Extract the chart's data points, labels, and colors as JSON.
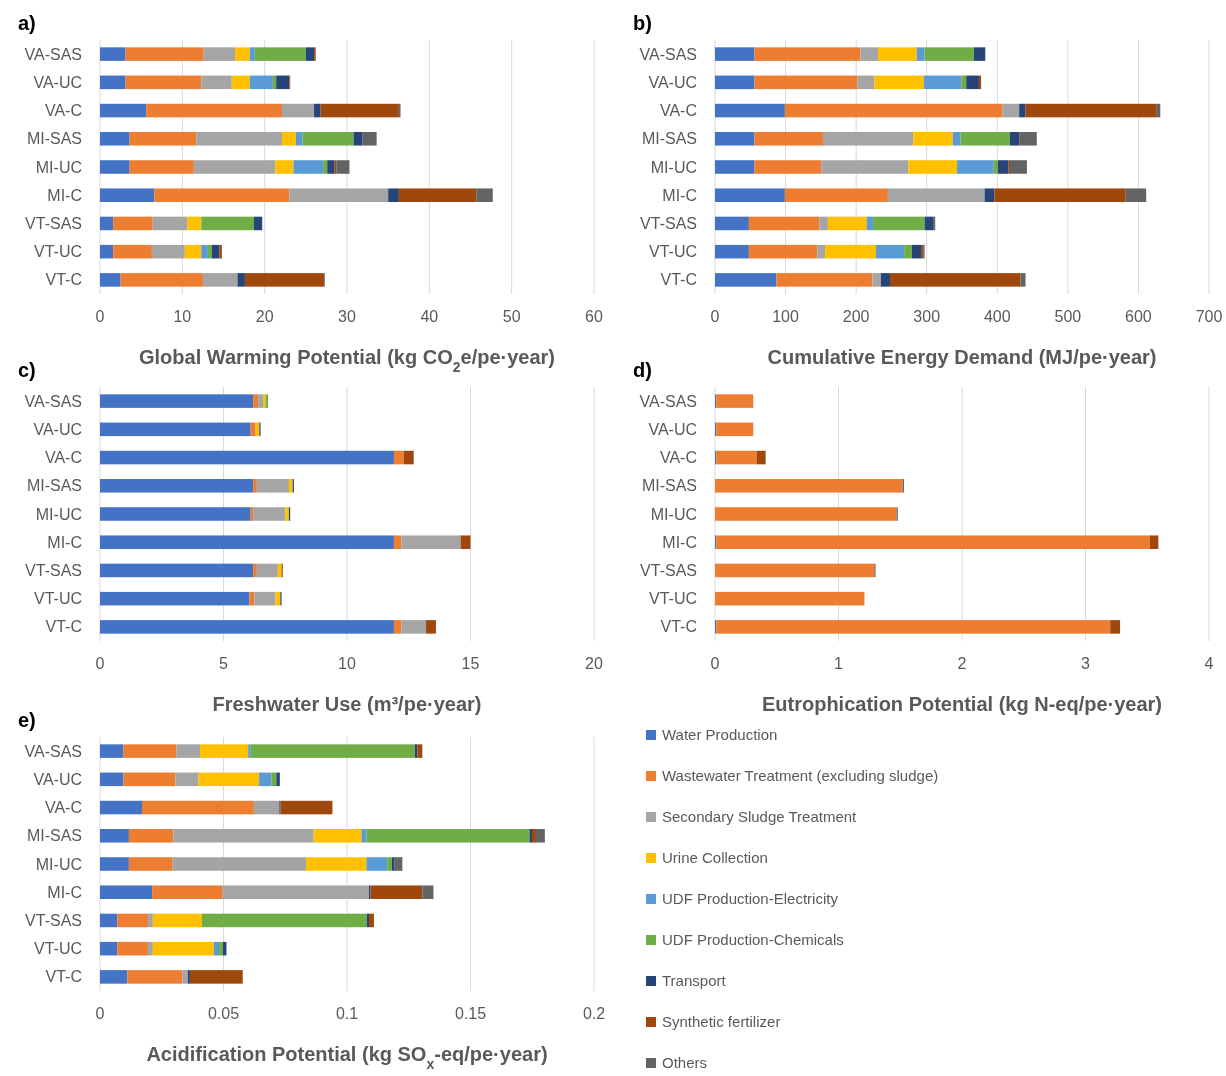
{
  "chart_data": [
    {
      "type": "bar",
      "orientation": "horizontal",
      "stacked": true,
      "title": "a)",
      "xlabel": "Global Warming Potential (kg CO$_{2}$e/pe·year)",
      "categories": [
        "VA-SAS",
        "VA-UC",
        "VA-C",
        "MI-SAS",
        "MI-UC",
        "MI-C",
        "VT-SAS",
        "VT-UC",
        "VT-C"
      ],
      "xlim": [
        0,
        60
      ],
      "xticks": [
        0,
        10,
        20,
        30,
        40,
        50,
        60
      ],
      "grid": "x",
      "legend": false,
      "series": [
        {
          "color": "#4472c4",
          "values": [
            3.1,
            3.1,
            5.6,
            3.6,
            3.6,
            6.6,
            1.6,
            1.6,
            2.5
          ]
        },
        {
          "color": "#ed7d31",
          "values": [
            9.5,
            9.2,
            16.5,
            8.1,
            7.8,
            16.4,
            4.8,
            4.7,
            10.0
          ]
        },
        {
          "color": "#a5a5a5",
          "values": [
            3.8,
            3.7,
            3.9,
            10.4,
            9.9,
            12.0,
            4.2,
            4.0,
            4.2
          ]
        },
        {
          "color": "#ffc000",
          "values": [
            1.8,
            2.2,
            0,
            1.7,
            2.2,
            0,
            1.7,
            2.0,
            0
          ]
        },
        {
          "color": "#5b9bd5",
          "values": [
            0.6,
            2.8,
            0,
            0.8,
            3.6,
            0,
            0,
            0.8,
            0
          ]
        },
        {
          "color": "#70ad47",
          "values": [
            6.2,
            0.4,
            0,
            6.2,
            0.5,
            0,
            6.4,
            0.5,
            0
          ]
        },
        {
          "color": "#264478",
          "values": [
            1.0,
            1.6,
            0.8,
            1.1,
            0.9,
            1.3,
            1.0,
            0.9,
            0.9
          ]
        },
        {
          "color": "#9e480e",
          "values": [
            0.2,
            0.1,
            9.5,
            0,
            0.2,
            9.4,
            0,
            0.3,
            9.6
          ]
        },
        {
          "color": "#636363",
          "values": [
            0,
            0,
            0.2,
            1.7,
            1.6,
            2.0,
            0,
            0,
            0.1
          ]
        }
      ]
    },
    {
      "type": "bar",
      "orientation": "horizontal",
      "stacked": true,
      "title": "b)",
      "xlabel": "Cumulative Energy Demand (MJ/pe·year)",
      "categories": [
        "VA-SAS",
        "VA-UC",
        "VA-C",
        "MI-SAS",
        "MI-UC",
        "MI-C",
        "VT-SAS",
        "VT-UC",
        "VT-C"
      ],
      "xlim": [
        0,
        700
      ],
      "xticks": [
        0,
        100,
        200,
        300,
        400,
        500,
        600,
        700
      ],
      "grid": "x",
      "legend": false,
      "series": [
        {
          "color": "#4472c4",
          "values": [
            56,
            56,
            99,
            56,
            56,
            99,
            48,
            48,
            87
          ]
        },
        {
          "color": "#ed7d31",
          "values": [
            150,
            146,
            308,
            97,
            95,
            146,
            100,
            97,
            136
          ]
        },
        {
          "color": "#a5a5a5",
          "values": [
            25,
            24,
            24,
            128,
            123,
            137,
            12,
            11,
            12
          ]
        },
        {
          "color": "#ffc000",
          "values": [
            55,
            70,
            0,
            56,
            69,
            0,
            55,
            72,
            0
          ]
        },
        {
          "color": "#5b9bd5",
          "values": [
            11,
            53,
            0,
            11,
            52,
            0,
            9,
            40,
            0
          ]
        },
        {
          "color": "#70ad47",
          "values": [
            70,
            7,
            0,
            70,
            6,
            0,
            73,
            11,
            0
          ]
        },
        {
          "color": "#264478",
          "values": [
            16,
            18,
            9,
            13,
            15,
            14,
            12,
            13,
            13
          ]
        },
        {
          "color": "#9e480e",
          "values": [
            0,
            3,
            186,
            0,
            2,
            186,
            0,
            3,
            185
          ]
        },
        {
          "color": "#636363",
          "values": [
            0,
            0,
            5,
            25,
            24,
            29,
            3,
            2,
            7
          ]
        }
      ]
    },
    {
      "type": "bar",
      "orientation": "horizontal",
      "stacked": true,
      "title": "c)",
      "xlabel": "Freshwater Use (m³/pe·year)",
      "categories": [
        "VA-SAS",
        "VA-UC",
        "VA-C",
        "MI-SAS",
        "MI-UC",
        "MI-C",
        "VT-SAS",
        "VT-UC",
        "VT-C"
      ],
      "xlim": [
        0,
        20
      ],
      "xticks": [
        0,
        5,
        10,
        15,
        20
      ],
      "grid": "x",
      "legend": false,
      "series": [
        {
          "color": "#4472c4",
          "values": [
            6.2,
            6.1,
            11.9,
            6.2,
            6.1,
            11.9,
            6.2,
            6.05,
            11.9
          ]
        },
        {
          "color": "#ed7d31",
          "values": [
            0.2,
            0.2,
            0.4,
            0.15,
            0.1,
            0.3,
            0.15,
            0.2,
            0.3
          ]
        },
        {
          "color": "#a5a5a5",
          "values": [
            0.2,
            0,
            0,
            1.3,
            1.3,
            2.4,
            0.85,
            0.85,
            1.0
          ]
        },
        {
          "color": "#ffc000",
          "values": [
            0.1,
            0.15,
            0,
            0.15,
            0.15,
            0,
            0.15,
            0.2,
            0
          ]
        },
        {
          "color": "#5b9bd5",
          "values": [
            0,
            0,
            0,
            0,
            0,
            0,
            0,
            0,
            0
          ]
        },
        {
          "color": "#70ad47",
          "values": [
            0.1,
            0,
            0,
            0,
            0,
            0,
            0,
            0,
            0
          ]
        },
        {
          "color": "#264478",
          "values": [
            0,
            0.05,
            0,
            0.05,
            0.05,
            0,
            0,
            0.05,
            0
          ]
        },
        {
          "color": "#9e480e",
          "values": [
            0,
            0,
            0.4,
            0,
            0,
            0.4,
            0.05,
            0,
            0.4
          ]
        },
        {
          "color": "#636363",
          "values": [
            0,
            0,
            0,
            0,
            0,
            0,
            0,
            0,
            0
          ]
        }
      ]
    },
    {
      "type": "bar",
      "orientation": "horizontal",
      "stacked": true,
      "title": "d)",
      "xlabel": "Eutrophication Potential (kg N-eq/pe·year)",
      "categories": [
        "VA-SAS",
        "VA-UC",
        "VA-C",
        "MI-SAS",
        "MI-UC",
        "MI-C",
        "VT-SAS",
        "VT-UC",
        "VT-C"
      ],
      "xlim": [
        0,
        4
      ],
      "xticks": [
        0,
        1,
        2,
        3,
        4
      ],
      "grid": "x",
      "legend": false,
      "series": [
        {
          "color": "#4472c4",
          "values": [
            0.01,
            0.01,
            0.01,
            0,
            0,
            0.01,
            0,
            0,
            0.01
          ]
        },
        {
          "color": "#ed7d31",
          "values": [
            0.3,
            0.3,
            0.33,
            1.52,
            1.47,
            3.51,
            1.29,
            1.21,
            3.19
          ]
        },
        {
          "color": "#a5a5a5",
          "values": [
            0,
            0,
            0,
            0,
            0,
            0,
            0,
            0,
            0
          ]
        },
        {
          "color": "#ffc000",
          "values": [
            0,
            0,
            0,
            0,
            0,
            0,
            0,
            0,
            0
          ]
        },
        {
          "color": "#5b9bd5",
          "values": [
            0,
            0,
            0,
            0,
            0,
            0,
            0,
            0,
            0
          ]
        },
        {
          "color": "#70ad47",
          "values": [
            0,
            0,
            0,
            0,
            0,
            0,
            0,
            0,
            0
          ]
        },
        {
          "color": "#264478",
          "values": [
            0,
            0,
            0,
            0,
            0,
            0,
            0,
            0,
            0
          ]
        },
        {
          "color": "#9e480e",
          "values": [
            0,
            0,
            0.07,
            0,
            0,
            0.07,
            0,
            0,
            0.08
          ]
        },
        {
          "color": "#636363",
          "values": [
            0,
            0,
            0,
            0.01,
            0.01,
            0,
            0.01,
            0,
            0
          ]
        }
      ]
    },
    {
      "type": "bar",
      "orientation": "horizontal",
      "stacked": true,
      "title": "e)",
      "xlabel": "Acidification Potential (kg SO$_{x}$-eq/pe·year)",
      "categories": [
        "VA-SAS",
        "VA-UC",
        "VA-C",
        "MI-SAS",
        "MI-UC",
        "MI-C",
        "VT-SAS",
        "VT-UC",
        "VT-C"
      ],
      "xlim": [
        0,
        0.2
      ],
      "xticks": [
        0,
        0.05,
        0.1,
        0.15,
        0.2
      ],
      "grid": "x",
      "legend": "right",
      "series": [
        {
          "name": "Water Production",
          "color": "#4472c4",
          "values": [
            0.0095,
            0.0095,
            0.017,
            0.0117,
            0.0117,
            0.0211,
            0.007,
            0.007,
            0.0111
          ]
        },
        {
          "name": "Wastewater Treatment (excluding sludge)",
          "color": "#ed7d31",
          "values": [
            0.0215,
            0.021,
            0.0453,
            0.018,
            0.0177,
            0.0286,
            0.0124,
            0.0124,
            0.0223
          ]
        },
        {
          "name": "Secondary Sludge Treatment",
          "color": "#a5a5a5",
          "values": [
            0.0095,
            0.0094,
            0.0103,
            0.0568,
            0.054,
            0.0592,
            0.002,
            0.002,
            0.0022
          ]
        },
        {
          "name": "Urine Collection",
          "color": "#ffc000",
          "values": [
            0.0195,
            0.0245,
            0,
            0.0194,
            0.0245,
            0,
            0.0199,
            0.0247,
            0
          ]
        },
        {
          "name": "UDF Production-Electricity",
          "color": "#5b9bd5",
          "values": [
            0.001,
            0.005,
            0,
            0.002,
            0.0084,
            0,
            0,
            0.0021,
            0
          ]
        },
        {
          "name": "UDF Production-Chemicals",
          "color": "#70ad47",
          "values": [
            0.0665,
            0.002,
            0,
            0.066,
            0.0019,
            0,
            0.0667,
            0.0016,
            0
          ]
        },
        {
          "name": "Transport",
          "color": "#264478",
          "values": [
            0.001,
            0.0014,
            0.0005,
            0.001,
            0.0011,
            0.0006,
            0.0009,
            0.0014,
            0.0008
          ]
        },
        {
          "name": "Synthetic fertilizer",
          "color": "#9e480e",
          "values": [
            0.002,
            0,
            0.021,
            0.0016,
            0,
            0.021,
            0.002,
            0,
            0.0214
          ]
        },
        {
          "name": "Others",
          "color": "#636363",
          "values": [
            0,
            0,
            0,
            0.0036,
            0.0031,
            0.0045,
            0,
            0,
            0
          ]
        }
      ]
    }
  ]
}
